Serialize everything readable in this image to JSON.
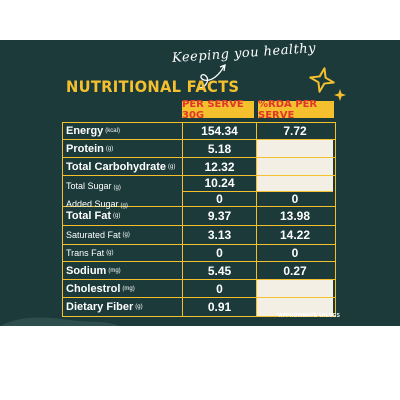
{
  "tagline": "Keeping you healthy",
  "title": "NUTRITIONAL FACTS",
  "headers": {
    "serve": "PER SERVE 30G",
    "rda": "%RDA PER SERVE"
  },
  "rows": {
    "energy": {
      "name": "Energy",
      "unit": "(kcal)",
      "serve": "154.34",
      "rda": "7.72"
    },
    "protein": {
      "name": "Protein",
      "unit": "(g)",
      "serve": "5.18",
      "rda": ""
    },
    "carb": {
      "name": "Total Carbohydrate",
      "unit": "(g)",
      "serve": "12.32",
      "rda": ""
    },
    "total_sugar": {
      "name": "Total Sugar",
      "unit": "(g)",
      "serve": "10.24",
      "rda": ""
    },
    "added_sugar": {
      "name": "Added Sugar",
      "unit": "(g)",
      "serve": "0",
      "rda": "0"
    },
    "fat": {
      "name": "Total Fat",
      "unit": "(g)",
      "serve": "9.37",
      "rda": "13.98"
    },
    "sat_fat": {
      "name": "Saturated Fat",
      "unit": "(g)",
      "serve": "3.13",
      "rda": "14.22"
    },
    "trans_fat": {
      "name": "Trans Fat",
      "unit": "(g)",
      "serve": "0",
      "rda": "0"
    },
    "sodium": {
      "name": "Sodium",
      "unit": "(mg)",
      "serve": "5.45",
      "rda": "0.27"
    },
    "chol": {
      "name": "Cholestrol",
      "unit": "(mg)",
      "serve": "0",
      "rda": ""
    },
    "fiber": {
      "name": "Dietary Fiber",
      "unit": "(g)",
      "serve": "0.91",
      "rda": ""
    }
  },
  "footnote": "*APPROXIMATE VALUES",
  "colors": {
    "background": "#1c3a3a",
    "accent": "#f4c02e",
    "header_text": "#e0362b",
    "empty_cell": "#f4efe4"
  }
}
